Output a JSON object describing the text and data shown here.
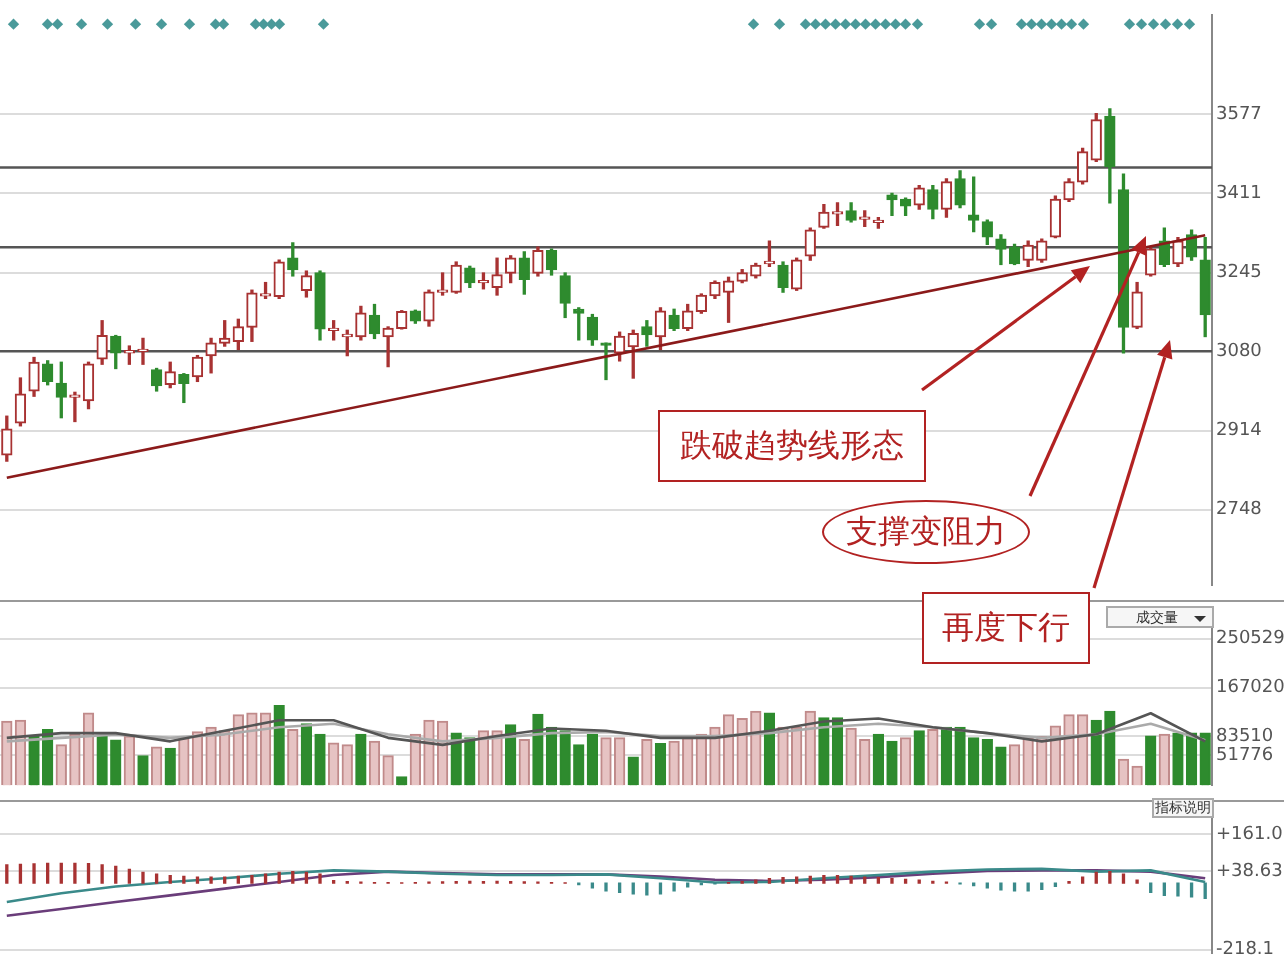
{
  "chart_data": [
    {
      "type": "candlestick",
      "categories": [
        null,
        null,
        null,
        null,
        null,
        null,
        null,
        null,
        null,
        null,
        null,
        null,
        null,
        null,
        null,
        null,
        null,
        null,
        null,
        null,
        null,
        null,
        null,
        null,
        null,
        null,
        null,
        null,
        null,
        null,
        null,
        null,
        null,
        null,
        null,
        null,
        null,
        null,
        null,
        null,
        null,
        null,
        null,
        null,
        null,
        null,
        null,
        null,
        null,
        null,
        null,
        null,
        null,
        null,
        null,
        null,
        null,
        null,
        null,
        null,
        null,
        null,
        null,
        null,
        null,
        null,
        null,
        null,
        null,
        null,
        null,
        null,
        null,
        null,
        null,
        null,
        null,
        null,
        null,
        null,
        null,
        null,
        null,
        null,
        null,
        null,
        null,
        null,
        null
      ],
      "ohlc": [
        [
          2863,
          2944,
          2850,
          2917
        ],
        [
          2930,
          3024,
          2924,
          2990
        ],
        [
          2997,
          3067,
          2986,
          3057
        ],
        [
          3053,
          3060,
          3010,
          3017
        ],
        [
          3013,
          3057,
          2941,
          2984
        ],
        [
          2984,
          2994,
          2933,
          2987
        ],
        [
          2977,
          3057,
          2960,
          3053
        ],
        [
          3064,
          3144,
          3053,
          3113
        ],
        [
          3111,
          3113,
          3044,
          3077
        ],
        [
          3077,
          3091,
          3053,
          3080
        ],
        [
          3080,
          3107,
          3053,
          3083
        ],
        [
          3041,
          3044,
          2997,
          3008
        ],
        [
          3011,
          3057,
          3004,
          3037
        ],
        [
          3031,
          3033,
          2973,
          3013
        ],
        [
          3027,
          3071,
          3017,
          3067
        ],
        [
          3071,
          3107,
          3035,
          3097
        ],
        [
          3097,
          3144,
          3091,
          3107
        ],
        [
          3101,
          3147,
          3084,
          3131
        ],
        [
          3131,
          3208,
          3101,
          3202
        ],
        [
          3196,
          3224,
          3191,
          3200
        ],
        [
          3195,
          3271,
          3191,
          3267
        ],
        [
          3275,
          3307,
          3238,
          3251
        ],
        [
          3208,
          3248,
          3194,
          3238
        ],
        [
          3244,
          3248,
          3104,
          3127
        ],
        [
          3124,
          3144,
          3104,
          3127
        ],
        [
          3111,
          3124,
          3071,
          3113
        ],
        [
          3111,
          3174,
          3104,
          3160
        ],
        [
          3155,
          3178,
          3107,
          3117
        ],
        [
          3111,
          3131,
          3048,
          3128
        ],
        [
          3128,
          3165,
          3127,
          3163
        ],
        [
          3164,
          3166,
          3139,
          3144
        ],
        [
          3144,
          3208,
          3133,
          3204
        ],
        [
          3204,
          3244,
          3198,
          3207
        ],
        [
          3204,
          3267,
          3202,
          3260
        ],
        [
          3254,
          3258,
          3214,
          3224
        ],
        [
          3224,
          3244,
          3211,
          3226
        ],
        [
          3214,
          3275,
          3198,
          3240
        ],
        [
          3244,
          3280,
          3224,
          3275
        ],
        [
          3275,
          3288,
          3200,
          3231
        ],
        [
          3244,
          3298,
          3238,
          3291
        ],
        [
          3291,
          3294,
          3240,
          3251
        ],
        [
          3238,
          3244,
          3151,
          3181
        ],
        [
          3168,
          3171,
          3104,
          3160
        ],
        [
          3151,
          3157,
          3093,
          3104
        ],
        [
          3095,
          3097,
          3021,
          3093
        ],
        [
          3077,
          3120,
          3060,
          3111
        ],
        [
          3090,
          3124,
          3024,
          3117
        ],
        [
          3131,
          3144,
          3091,
          3115
        ],
        [
          3111,
          3171,
          3084,
          3164
        ],
        [
          3155,
          3168,
          3124,
          3128
        ],
        [
          3128,
          3178,
          3124,
          3164
        ],
        [
          3164,
          3200,
          3160,
          3197
        ],
        [
          3197,
          3227,
          3191,
          3224
        ],
        [
          3204,
          3235,
          3141,
          3227
        ],
        [
          3227,
          3251,
          3224,
          3244
        ],
        [
          3238,
          3264,
          3234,
          3260
        ],
        [
          3264,
          3311,
          3258,
          3267
        ],
        [
          3260,
          3267,
          3204,
          3214
        ],
        [
          3211,
          3275,
          3208,
          3271
        ],
        [
          3280,
          3338,
          3271,
          3334
        ],
        [
          3340,
          3387,
          3338,
          3371
        ],
        [
          3368,
          3391,
          3344,
          3371
        ],
        [
          3374,
          3391,
          3351,
          3355
        ],
        [
          3357,
          3374,
          3342,
          3360
        ],
        [
          3350,
          3360,
          3338,
          3352
        ],
        [
          3407,
          3411,
          3365,
          3398
        ],
        [
          3398,
          3401,
          3365,
          3385
        ],
        [
          3387,
          3427,
          3378,
          3422
        ],
        [
          3418,
          3427,
          3358,
          3378
        ],
        [
          3378,
          3441,
          3361,
          3435
        ],
        [
          3441,
          3458,
          3381,
          3387
        ],
        [
          3365,
          3445,
          3331,
          3355
        ],
        [
          3351,
          3355,
          3304,
          3320
        ],
        [
          3315,
          3324,
          3262,
          3294
        ],
        [
          3298,
          3304,
          3262,
          3264
        ],
        [
          3271,
          3311,
          3258,
          3302
        ],
        [
          3271,
          3315,
          3267,
          3311
        ],
        [
          3320,
          3405,
          3318,
          3398
        ],
        [
          3398,
          3441,
          3394,
          3435
        ],
        [
          3435,
          3505,
          3431,
          3498
        ],
        [
          3481,
          3578,
          3478,
          3565
        ],
        [
          3572,
          3588,
          3391,
          3467
        ],
        [
          3418,
          3451,
          3077,
          3131
        ],
        [
          3131,
          3224,
          3128,
          3204
        ],
        [
          3240,
          3298,
          3238,
          3294
        ],
        [
          3311,
          3338,
          3258,
          3262
        ],
        [
          3264,
          3318,
          3258,
          3311
        ],
        [
          3324,
          3334,
          3271,
          3278
        ],
        [
          3271,
          3318,
          3111,
          3157
        ]
      ],
      "series": [
        {
          "type": "line",
          "color": "#8b1a1a",
          "values": [
            2815,
            null,
            null,
            null,
            null,
            null,
            null,
            null,
            null,
            null,
            null,
            null,
            null,
            null,
            null,
            null,
            null,
            null,
            null,
            null,
            null,
            null,
            null,
            null,
            null,
            null,
            null,
            null,
            null,
            null,
            null,
            null,
            null,
            null,
            null,
            null,
            null,
            null,
            null,
            null,
            null,
            null,
            null,
            null,
            null,
            null,
            null,
            null,
            null,
            null,
            null,
            null,
            null,
            null,
            null,
            null,
            null,
            null,
            null,
            null,
            null,
            null,
            null,
            null,
            null,
            null,
            null,
            null,
            null,
            null,
            null,
            null,
            null,
            null,
            null,
            null,
            null,
            null,
            null,
            null,
            null,
            null,
            null,
            null,
            null,
            null,
            null,
            null,
            3323
          ]
        }
      ],
      "ylim": [
        2590,
        3785
      ],
      "yticks": [
        2748,
        2914,
        3080,
        3245,
        3411,
        3577
      ],
      "grid": "y",
      "tick_labels": "y",
      "ref_lines": [
        {
          "axis": "y",
          "value": 3465,
          "color": "#555555"
        },
        {
          "axis": "y",
          "value": 3298,
          "color": "#555555"
        },
        {
          "axis": "y",
          "value": 3080,
          "color": "#555555"
        }
      ],
      "annotations": [
        "跌破趋势线形态",
        "支撑变阻力",
        "再度下行"
      ]
    },
    {
      "type": "bar",
      "categories": [
        null,
        null,
        null,
        null,
        null,
        null,
        null,
        null,
        null,
        null,
        null,
        null,
        null,
        null,
        null,
        null,
        null,
        null,
        null,
        null,
        null,
        null,
        null,
        null,
        null,
        null,
        null,
        null,
        null,
        null,
        null,
        null,
        null,
        null,
        null,
        null,
        null,
        null,
        null,
        null,
        null,
        null,
        null,
        null,
        null,
        null,
        null,
        null,
        null,
        null,
        null,
        null,
        null,
        null,
        null,
        null,
        null,
        null,
        null,
        null,
        null,
        null,
        null,
        null,
        null,
        null,
        null,
        null,
        null,
        null,
        null,
        null,
        null,
        null,
        null,
        null,
        null,
        null,
        null,
        null,
        null,
        null,
        null,
        null,
        null,
        null,
        null,
        null,
        null
      ],
      "series": [
        {
          "type": "bar",
          "values": [
            109000,
            111000,
            84000,
            95000,
            69000,
            87000,
            123000,
            84000,
            77000,
            84000,
            50000,
            65000,
            63000,
            81000,
            91000,
            99000,
            93000,
            120000,
            123000,
            123000,
            136000,
            95000,
            105000,
            87000,
            72000,
            69000,
            87000,
            75000,
            50000,
            14000,
            87000,
            111000,
            109000,
            89000,
            81000,
            93000,
            93000,
            103000,
            78000,
            121000,
            99000,
            93000,
            69000,
            87000,
            81000,
            81000,
            48000,
            78000,
            71000,
            75000,
            81000,
            87000,
            99000,
            120000,
            114000,
            126000,
            123000,
            99000,
            99000,
            126000,
            115000,
            115000,
            97000,
            78000,
            87000,
            75000,
            81000,
            93000,
            95000,
            99000,
            99000,
            81000,
            78000,
            65000,
            69000,
            81000,
            83000,
            101000,
            120000,
            120000,
            111000,
            126000,
            44000,
            32000,
            84000,
            87000,
            89000,
            89000,
            89000
          ],
          "colors": [
            "#e6c3c3",
            "#e6c3c3",
            "#2e8b2e",
            "#2e8b2e",
            "#e6c3c3",
            "#e6c3c3",
            "#e6c3c3",
            "#2e8b2e",
            "#2e8b2e",
            "#e6c3c3",
            "#2e8b2e",
            "#e6c3c3",
            "#2e8b2e",
            "#e6c3c3",
            "#e6c3c3",
            "#e6c3c3",
            "#e6c3c3",
            "#e6c3c3",
            "#e6c3c3",
            "#e6c3c3",
            "#2e8b2e",
            "#e6c3c3",
            "#2e8b2e",
            "#2e8b2e",
            "#e6c3c3",
            "#e6c3c3",
            "#2e8b2e",
            "#e6c3c3",
            "#e6c3c3",
            "#2e8b2e",
            "#e6c3c3",
            "#e6c3c3",
            "#e6c3c3",
            "#2e8b2e",
            "#2e8b2e",
            "#e6c3c3",
            "#e6c3c3",
            "#2e8b2e",
            "#e6c3c3",
            "#2e8b2e",
            "#2e8b2e",
            "#2e8b2e",
            "#2e8b2e",
            "#2e8b2e",
            "#e6c3c3",
            "#e6c3c3",
            "#2e8b2e",
            "#e6c3c3",
            "#2e8b2e",
            "#e6c3c3",
            "#e6c3c3",
            "#e6c3c3",
            "#e6c3c3",
            "#e6c3c3",
            "#e6c3c3",
            "#e6c3c3",
            "#2e8b2e",
            "#e6c3c3",
            "#e6c3c3",
            "#e6c3c3",
            "#2e8b2e",
            "#2e8b2e",
            "#e6c3c3",
            "#e6c3c3",
            "#2e8b2e",
            "#2e8b2e",
            "#e6c3c3",
            "#2e8b2e",
            "#e6c3c3",
            "#2e8b2e",
            "#2e8b2e",
            "#2e8b2e",
            "#2e8b2e",
            "#2e8b2e",
            "#e6c3c3",
            "#e6c3c3",
            "#e6c3c3",
            "#e6c3c3",
            "#e6c3c3",
            "#e6c3c3",
            "#2e8b2e",
            "#2e8b2e",
            "#e6c3c3",
            "#e6c3c3",
            "#2e8b2e",
            "#e6c3c3",
            "#2e8b2e",
            "#2e8b2e",
            "#2e8b2e"
          ]
        },
        {
          "type": "line",
          "color": "#555555",
          "values": [
            81000,
            null,
            null,
            null,
            89000,
            null,
            null,
            null,
            89000,
            null,
            null,
            null,
            75000,
            null,
            null,
            null,
            93000,
            null,
            null,
            null,
            111000,
            null,
            null,
            null,
            111000,
            null,
            null,
            null,
            81000,
            null,
            null,
            null,
            69000,
            null,
            null,
            null,
            84000,
            null,
            null,
            null,
            97000,
            null,
            null,
            null,
            93000,
            null,
            null,
            null,
            81000,
            null,
            null,
            null,
            81000,
            null,
            null,
            null,
            93000,
            null,
            null,
            null,
            109000,
            null,
            null,
            null,
            114000,
            null,
            null,
            null,
            99000,
            null,
            null,
            null,
            89000,
            null,
            null,
            null,
            75000,
            null,
            null,
            null,
            87000,
            null,
            null,
            null,
            123000,
            null,
            null,
            null,
            75000
          ]
        },
        {
          "type": "line",
          "color": "#aaaaaa",
          "values": [
            75000,
            null,
            null,
            null,
            81000,
            null,
            null,
            null,
            87000,
            null,
            null,
            null,
            81000,
            null,
            null,
            null,
            87000,
            null,
            null,
            null,
            99000,
            null,
            null,
            null,
            105000,
            null,
            null,
            null,
            87000,
            null,
            null,
            null,
            75000,
            null,
            null,
            null,
            81000,
            null,
            null,
            null,
            89000,
            null,
            null,
            null,
            91000,
            null,
            null,
            null,
            84000,
            null,
            null,
            null,
            84000,
            null,
            null,
            null,
            89000,
            null,
            null,
            null,
            99000,
            null,
            null,
            null,
            105000,
            null,
            null,
            null,
            99000,
            null,
            null,
            null,
            89000,
            null,
            null,
            null,
            81000,
            null,
            null,
            null,
            87000,
            null,
            null,
            null,
            105000,
            null,
            null,
            null,
            77000
          ]
        }
      ],
      "ylim": [
        0,
        288000
      ],
      "yticks": [
        51776,
        83510,
        167020,
        250529
      ],
      "grid": "y",
      "tick_labels": "y",
      "annotations": [
        "成交量"
      ]
    },
    {
      "type": "bar",
      "categories": [
        null,
        null,
        null,
        null,
        null,
        null,
        null,
        null,
        null,
        null,
        null,
        null,
        null,
        null,
        null,
        null,
        null,
        null,
        null,
        null,
        null,
        null,
        null,
        null,
        null,
        null,
        null,
        null,
        null,
        null,
        null,
        null,
        null,
        null,
        null,
        null,
        null,
        null,
        null,
        null,
        null,
        null,
        null,
        null,
        null,
        null,
        null,
        null,
        null,
        null,
        null,
        null,
        null,
        null,
        null,
        null,
        null,
        null,
        null,
        null,
        null,
        null,
        null,
        null,
        null,
        null,
        null,
        null,
        null,
        null,
        null,
        null,
        null,
        null,
        null,
        null,
        null,
        null,
        null,
        null,
        null,
        null,
        null,
        null,
        null,
        null,
        null,
        null,
        null
      ],
      "series": [
        {
          "type": "bar",
          "values": [
            60,
            62,
            63,
            65,
            65,
            65,
            64,
            60,
            55,
            45,
            35,
            30,
            25,
            22,
            20,
            20,
            20,
            22,
            25,
            30,
            35,
            38,
            35,
            30,
            8,
            5,
            3,
            2,
            2,
            1,
            2,
            3,
            4,
            5,
            6,
            5,
            6,
            5,
            4,
            3,
            2,
            1,
            -5,
            -15,
            -25,
            -30,
            -35,
            -38,
            -35,
            -25,
            -12,
            -5,
            -2,
            2,
            5,
            10,
            15,
            18,
            20,
            22,
            25,
            25,
            22,
            20,
            18,
            15,
            12,
            10,
            6,
            3,
            -2,
            -8,
            -15,
            -22,
            -25,
            -25,
            -20,
            -10,
            5,
            20,
            35,
            38,
            30,
            10,
            -30,
            -40,
            -42,
            -45,
            -50
          ],
          "colors": [
            "#a83232",
            "#a83232",
            "#a83232",
            "#a83232",
            "#a83232",
            "#a83232",
            "#a83232",
            "#a83232",
            "#a83232",
            "#a83232",
            "#a83232",
            "#a83232",
            "#a83232",
            "#a83232",
            "#a83232",
            "#a83232",
            "#a83232",
            "#a83232",
            "#a83232",
            "#a83232",
            "#a83232",
            "#a83232",
            "#a83232",
            "#a83232",
            "#a83232",
            "#a83232",
            "#a83232",
            "#a83232",
            "#a83232",
            "#a83232",
            "#a83232",
            "#a83232",
            "#a83232",
            "#a83232",
            "#a83232",
            "#a83232",
            "#a83232",
            "#a83232",
            "#a83232",
            "#a83232",
            "#a83232",
            "#a83232",
            "#3a8a8a",
            "#3a8a8a",
            "#3a8a8a",
            "#3a8a8a",
            "#3a8a8a",
            "#3a8a8a",
            "#3a8a8a",
            "#3a8a8a",
            "#3a8a8a",
            "#3a8a8a",
            "#3a8a8a",
            "#a83232",
            "#a83232",
            "#a83232",
            "#a83232",
            "#a83232",
            "#a83232",
            "#a83232",
            "#a83232",
            "#a83232",
            "#a83232",
            "#a83232",
            "#a83232",
            "#a83232",
            "#a83232",
            "#a83232",
            "#a83232",
            "#a83232",
            "#3a8a8a",
            "#3a8a8a",
            "#3a8a8a",
            "#3a8a8a",
            "#3a8a8a",
            "#3a8a8a",
            "#3a8a8a",
            "#3a8a8a",
            "#a83232",
            "#a83232",
            "#a83232",
            "#a83232",
            "#a83232",
            "#a83232",
            "#3a8a8a",
            "#3a8a8a",
            "#3a8a8a",
            "#3a8a8a",
            "#3a8a8a"
          ]
        },
        {
          "type": "line",
          "color": "#3a8a8a",
          "values": [
            -62,
            null,
            null,
            null,
            -33,
            null,
            null,
            null,
            -11,
            null,
            null,
            null,
            4,
            null,
            null,
            null,
            16,
            null,
            null,
            null,
            31,
            null,
            null,
            null,
            42,
            null,
            null,
            null,
            38,
            null,
            null,
            null,
            31,
            null,
            null,
            null,
            27,
            null,
            null,
            null,
            27,
            null,
            null,
            null,
            29,
            null,
            null,
            null,
            16,
            null,
            null,
            null,
            2,
            null,
            null,
            null,
            4,
            null,
            null,
            null,
            16,
            null,
            null,
            null,
            27,
            null,
            null,
            null,
            38,
            null,
            null,
            null,
            45,
            null,
            null,
            null,
            47,
            null,
            null,
            null,
            38,
            null,
            null,
            null,
            42,
            null,
            null,
            null,
            4
          ]
        },
        {
          "type": "line",
          "color": "#6a3d7a",
          "values": [
            -107,
            null,
            null,
            null,
            -85,
            null,
            null,
            null,
            -62,
            null,
            null,
            null,
            -40,
            null,
            null,
            null,
            -18,
            null,
            null,
            null,
            4,
            null,
            null,
            null,
            27,
            null,
            null,
            null,
            38,
            null,
            null,
            null,
            33,
            null,
            null,
            null,
            29,
            null,
            null,
            null,
            29,
            null,
            null,
            null,
            29,
            null,
            null,
            null,
            22,
            null,
            null,
            null,
            11,
            null,
            null,
            null,
            7,
            null,
            null,
            null,
            11,
            null,
            null,
            null,
            20,
            null,
            null,
            null,
            31,
            null,
            null,
            null,
            40,
            null,
            null,
            null,
            42,
            null,
            null,
            null,
            42,
            null,
            null,
            null,
            38,
            null,
            null,
            null,
            16
          ]
        }
      ],
      "ylim": [
        -230,
        218
      ],
      "yticks": [
        {
          "value": -218.1,
          "label": "-218.1"
        },
        {
          "value": 38.63,
          "label": "+38.63"
        },
        {
          "value": 161.0,
          "label": "+161.0"
        }
      ],
      "grid": "y",
      "tick_labels": "y",
      "annotations": [
        "指标说明"
      ]
    }
  ]
}
